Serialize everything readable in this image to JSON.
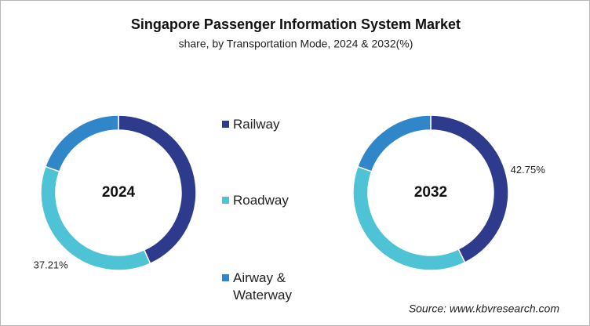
{
  "title": "Singapore Passenger Information System Market",
  "subtitle": "share, by Transportation Mode, 2024 & 2032(%)",
  "source": "Source: www.kbvresearch.com",
  "chart_data": [
    {
      "type": "donut",
      "center_label": "2024",
      "categories": [
        "Railway",
        "Roadway",
        "Airway & Waterway"
      ],
      "colors": [
        "#2e3a8c",
        "#4fc3d6",
        "#2f86c8"
      ],
      "values": [
        43.29,
        37.21,
        19.5
      ],
      "value_labels": [
        null,
        "37.21%",
        null
      ]
    },
    {
      "type": "donut",
      "center_label": "2032",
      "values": [
        42.75,
        37.75,
        19.5
      ],
      "value_labels": [
        "42.75%",
        null,
        null
      ]
    }
  ]
}
